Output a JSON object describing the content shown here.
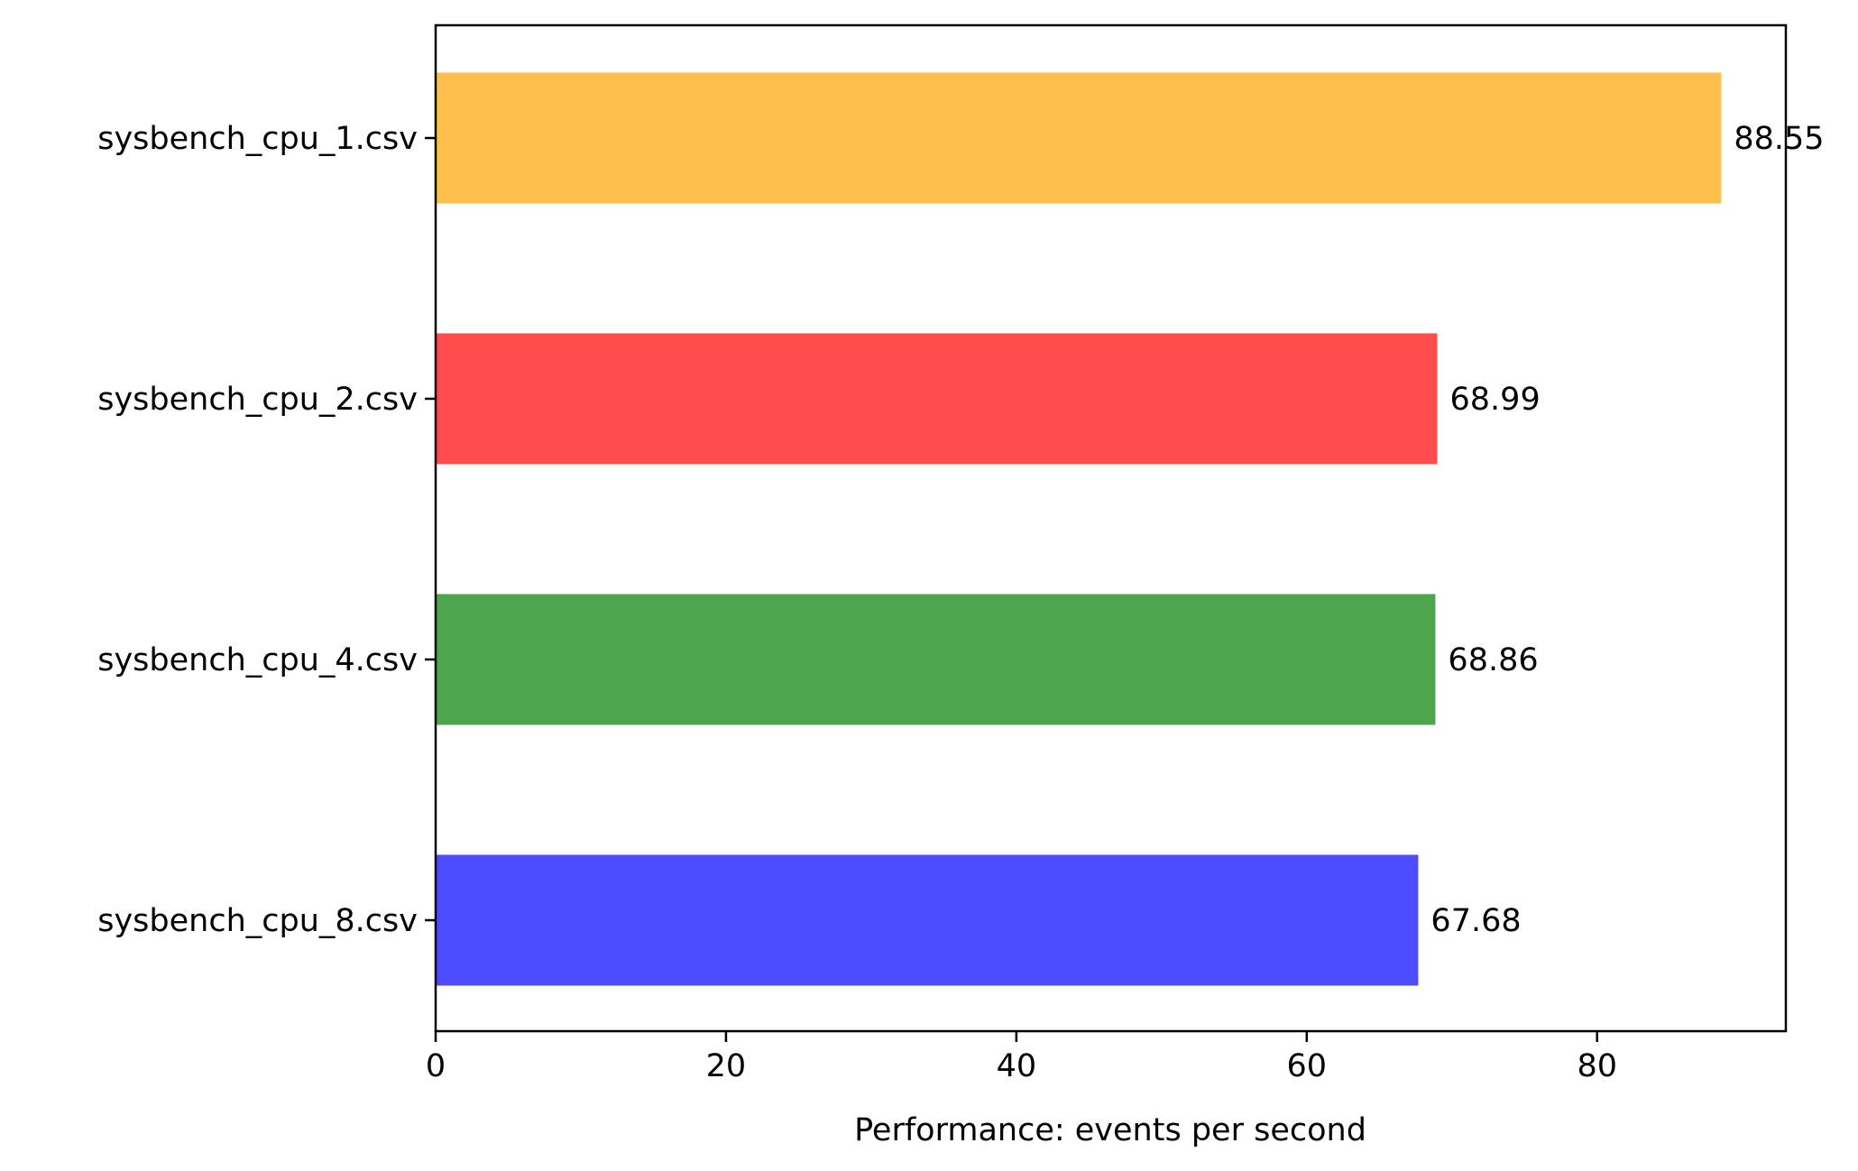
{
  "chart_data": {
    "type": "bar",
    "orientation": "horizontal",
    "categories": [
      "sysbench_cpu_1.csv",
      "sysbench_cpu_2.csv",
      "sysbench_cpu_4.csv",
      "sysbench_cpu_8.csv"
    ],
    "values": [
      88.55,
      68.99,
      68.86,
      67.68
    ],
    "data_labels": [
      "88.55",
      "68.99",
      "68.86",
      "67.68"
    ],
    "colors": [
      "#FFBF4D",
      "#FF4D4D",
      "#4DA64D",
      "#4D4DFF"
    ],
    "title": "",
    "xlabel": "Performance: events per second",
    "ylabel": "",
    "xlim": [
      0,
      93
    ],
    "xticks": [
      0,
      20,
      40,
      60,
      80
    ],
    "xtick_labels": [
      "0",
      "20",
      "40",
      "60",
      "80"
    ],
    "grid": false,
    "legend": "none"
  }
}
